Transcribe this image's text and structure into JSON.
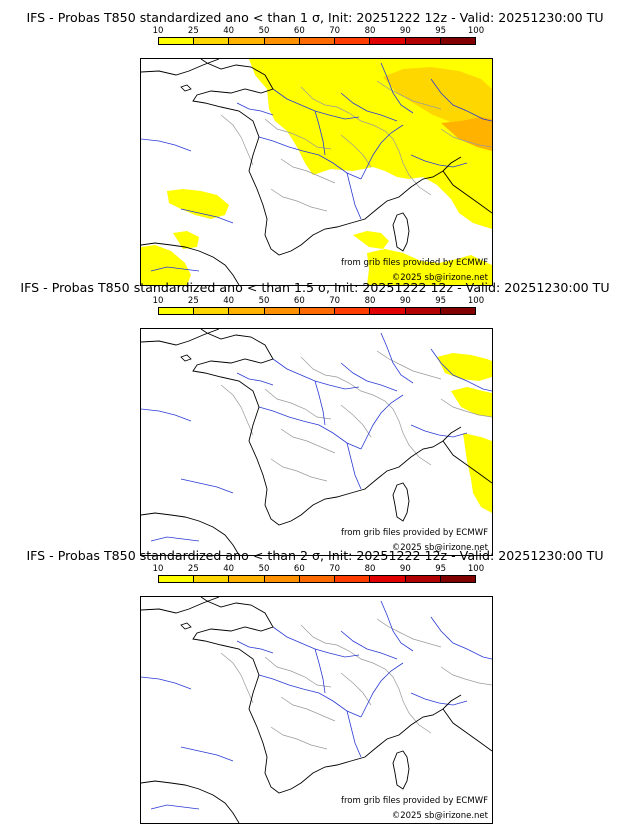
{
  "scale": {
    "ticks": [
      "10",
      "25",
      "40",
      "50",
      "60",
      "70",
      "80",
      "90",
      "95",
      "100"
    ],
    "colors": [
      "#ffff00",
      "#ffd700",
      "#ffb300",
      "#ff9000",
      "#ff6a00",
      "#ff3c00",
      "#e00000",
      "#b00000",
      "#800000"
    ]
  },
  "credits": {
    "source": "from grib files provided by ECMWF",
    "copyright": "©2025 sb@irizone.net"
  },
  "panels": [
    {
      "title": "IFS - Probas T850  standardized ano < than 1 σ, Init: 20251222 12z - Valid: 20251230:00 TU",
      "threshold": "1 σ"
    },
    {
      "title": "IFS - Probas T850  standardized ano < than 1.5 σ, Init: 20251222 12z - Valid: 20251230:00 TU",
      "threshold": "1.5 σ"
    },
    {
      "title": "IFS - Probas T850  standardized ano < than 2 σ, Init: 20251222 12z - Valid: 20251230:00 TU",
      "threshold": "2 σ"
    }
  ]
}
